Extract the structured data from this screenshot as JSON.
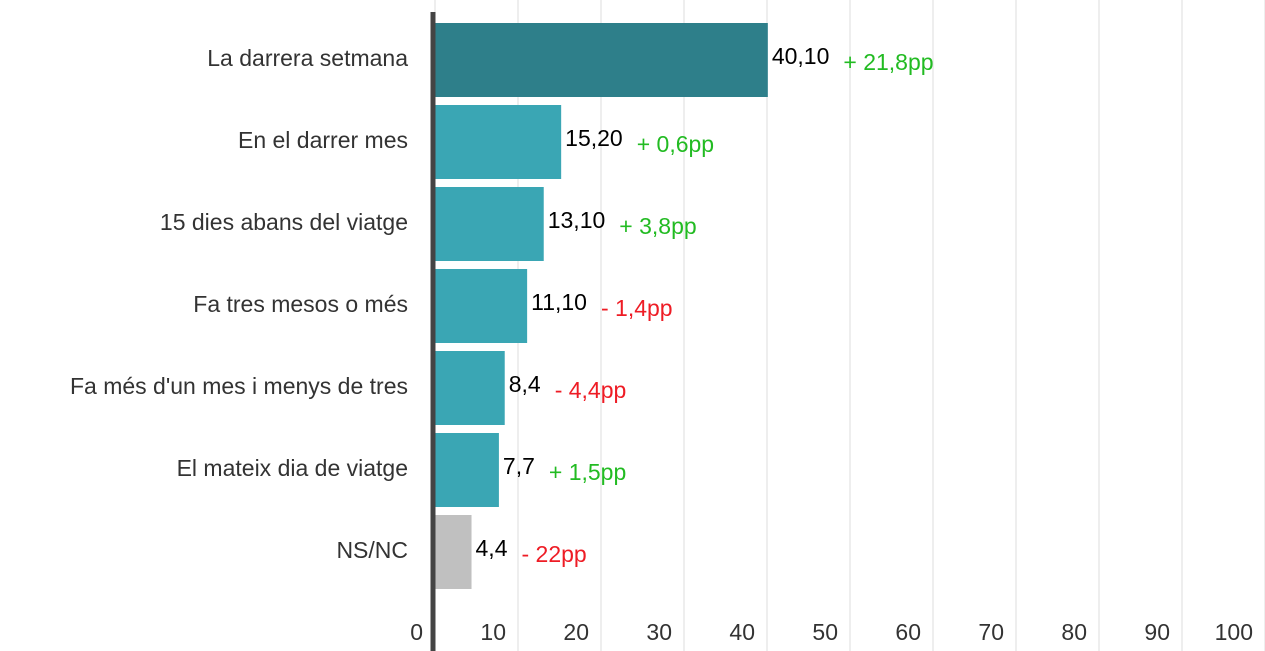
{
  "chart_data": {
    "type": "bar",
    "orientation": "horizontal",
    "categories": [
      "La darrera setmana",
      "En el darrer mes",
      "15 dies abans del viatge",
      "Fa tres mesos o més",
      "Fa més d'un mes i menys de tres",
      "El mateix dia de viatge",
      "NS/NC"
    ],
    "values": [
      40.1,
      15.2,
      13.1,
      11.1,
      8.4,
      7.7,
      4.4
    ],
    "value_labels": [
      "40,10",
      "15,20",
      "13,10",
      "11,10",
      "8,4",
      "7,7",
      "4,4"
    ],
    "colors": [
      "#2e7f8a",
      "#3aa6b4",
      "#3aa6b4",
      "#3aa6b4",
      "#3aa6b4",
      "#3aa6b4",
      "#c0c0c0"
    ],
    "annotations": [
      {
        "text": "+ 21,8pp",
        "color": "#22bb22"
      },
      {
        "text": "+ 0,6pp",
        "color": "#22bb22"
      },
      {
        "text": "+ 3,8pp",
        "color": "#22bb22"
      },
      {
        "text": "- 1,4pp",
        "color": "#ee1c25"
      },
      {
        "text": "- 4,4pp",
        "color": "#ee1c25"
      },
      {
        "text": "+ 1,5pp",
        "color": "#22bb22"
      },
      {
        "text": "- 22pp",
        "color": "#ee1c25"
      }
    ],
    "xlim": [
      0,
      100
    ],
    "xticks": [
      0,
      10,
      20,
      30,
      40,
      50,
      60,
      70,
      80,
      90,
      100
    ],
    "grid": true
  }
}
